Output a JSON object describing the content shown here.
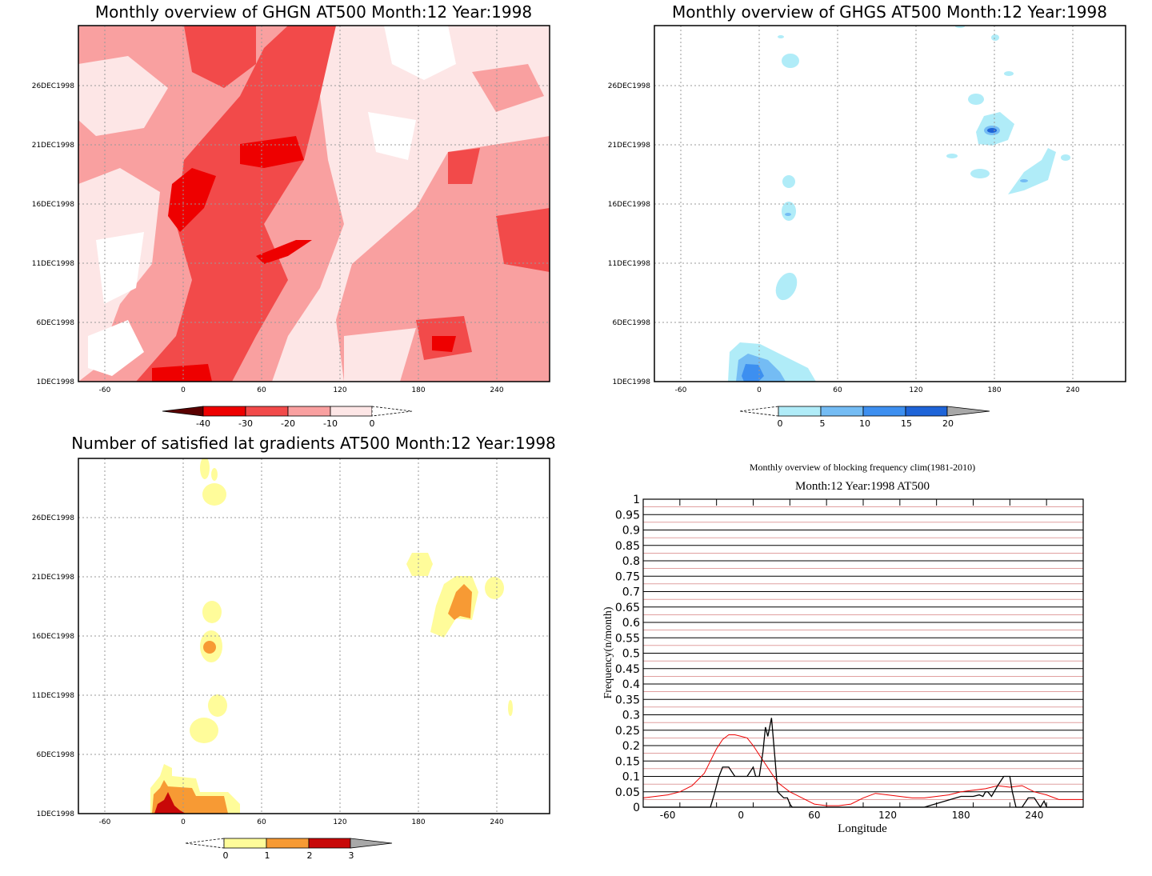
{
  "chart_data": [
    {
      "type": "heatmap",
      "title": "Monthly overview of GHGN AT500 Month:12 Year:1998",
      "xticks": [
        "-60",
        "0",
        "60",
        "120",
        "180",
        "240"
      ],
      "xtick_values": [
        -60,
        0,
        60,
        120,
        180,
        240
      ],
      "yticks": [
        "1DEC1998",
        "6DEC1998",
        "11DEC1998",
        "16DEC1998",
        "21DEC1998",
        "26DEC1998"
      ],
      "xlim": [
        -80,
        280
      ],
      "colorbar": {
        "labels": [
          "-40",
          "-30",
          "-20",
          "-10",
          "0"
        ],
        "colors": [
          "#5a0000",
          "#ee0000",
          "#f24a4a",
          "#f9a0a0",
          "#fde6e6"
        ]
      }
    },
    {
      "type": "heatmap",
      "title": "Monthly overview of GHGS AT500 Month:12 Year:1998",
      "xticks": [
        "-60",
        "0",
        "60",
        "120",
        "180",
        "240"
      ],
      "xtick_values": [
        -60,
        0,
        60,
        120,
        180,
        240
      ],
      "yticks": [
        "1DEC1998",
        "6DEC1998",
        "11DEC1998",
        "16DEC1998",
        "21DEC1998",
        "26DEC1998"
      ],
      "xlim": [
        -80,
        280
      ],
      "colorbar": {
        "labels": [
          "0",
          "5",
          "10",
          "15",
          "20"
        ],
        "colors": [
          "#b0ecf8",
          "#74bcf4",
          "#3d8ff0",
          "#1e64d8",
          "#a8a8a8"
        ]
      }
    },
    {
      "type": "heatmap",
      "title": "Number of satisfied lat gradients AT500 Month:12 Year:1998",
      "xticks": [
        "-60",
        "0",
        "60",
        "120",
        "180",
        "240"
      ],
      "xtick_values": [
        -60,
        0,
        60,
        120,
        180,
        240
      ],
      "yticks": [
        "1DEC1998",
        "6DEC1998",
        "11DEC1998",
        "16DEC1998",
        "21DEC1998",
        "26DEC1998"
      ],
      "xlim": [
        -80,
        280
      ],
      "colorbar": {
        "labels": [
          "0",
          "1",
          "2",
          "3"
        ],
        "colors": [
          "#fffc9a",
          "#f79a34",
          "#c80808",
          "#a8a8a8"
        ]
      }
    },
    {
      "type": "line",
      "title": "Monthly overview of blocking frequency clim(1981-2010)",
      "subtitle": "Month:12 Year:1998  AT500",
      "xlabel": "Longitude",
      "ylabel": "Frequency(n/month)",
      "xlim": [
        -80,
        280
      ],
      "ylim": [
        0,
        1
      ],
      "xticks": [
        "-60",
        "0",
        "60",
        "120",
        "180",
        "240"
      ],
      "xtick_values": [
        -60,
        0,
        60,
        120,
        180,
        240
      ],
      "yticks": [
        "0",
        "0.05",
        "0.1",
        "0.15",
        "0.2",
        "0.25",
        "0.3",
        "0.35",
        "0.4",
        "0.45",
        "0.5",
        "0.55",
        "0.6",
        "0.65",
        "0.7",
        "0.75",
        "0.8",
        "0.85",
        "0.9",
        "0.95",
        "1"
      ],
      "series": [
        {
          "color": "#ee0000",
          "x": [
            -80,
            -70,
            -60,
            -50,
            -40,
            -30,
            -25,
            -20,
            -15,
            -10,
            -5,
            0,
            5,
            10,
            15,
            20,
            25,
            30,
            35,
            40,
            45,
            50,
            55,
            60,
            70,
            80,
            90,
            100,
            110,
            120,
            130,
            140,
            150,
            160,
            170,
            180,
            190,
            200,
            210,
            220,
            230,
            240,
            250,
            260,
            270,
            280
          ],
          "y": [
            0.03,
            0.035,
            0.04,
            0.05,
            0.07,
            0.11,
            0.15,
            0.19,
            0.22,
            0.235,
            0.235,
            0.23,
            0.225,
            0.2,
            0.17,
            0.14,
            0.11,
            0.08,
            0.065,
            0.05,
            0.04,
            0.03,
            0.02,
            0.01,
            0.005,
            0.005,
            0.01,
            0.03,
            0.045,
            0.04,
            0.035,
            0.03,
            0.03,
            0.035,
            0.04,
            0.05,
            0.055,
            0.06,
            0.07,
            0.065,
            0.07,
            0.05,
            0.04,
            0.025,
            0.025,
            0.025
          ]
        },
        {
          "color": "#000000",
          "x": [
            -80,
            -25,
            -22,
            -18,
            -15,
            -10,
            -5,
            0,
            5,
            10,
            12,
            15,
            18,
            20,
            22,
            25,
            28,
            30,
            35,
            38,
            40,
            42,
            45,
            150,
            180,
            190,
            195,
            198,
            200,
            202,
            205,
            210,
            215,
            220,
            222,
            225,
            230,
            235,
            240,
            245,
            248,
            250,
            280
          ],
          "y": [
            0,
            0,
            0.04,
            0.1,
            0.13,
            0.13,
            0.1,
            0.1,
            0.1,
            0.13,
            0.1,
            0.1,
            0.18,
            0.26,
            0.23,
            0.29,
            0.15,
            0.05,
            0.03,
            0.03,
            0.01,
            0,
            0,
            0,
            0.035,
            0.035,
            0.04,
            0.035,
            0.05,
            0.05,
            0.035,
            0.07,
            0.1,
            0.1,
            0.05,
            0.0,
            0.0,
            0.03,
            0.03,
            0.0,
            0.02,
            0,
            0
          ]
        }
      ]
    }
  ]
}
